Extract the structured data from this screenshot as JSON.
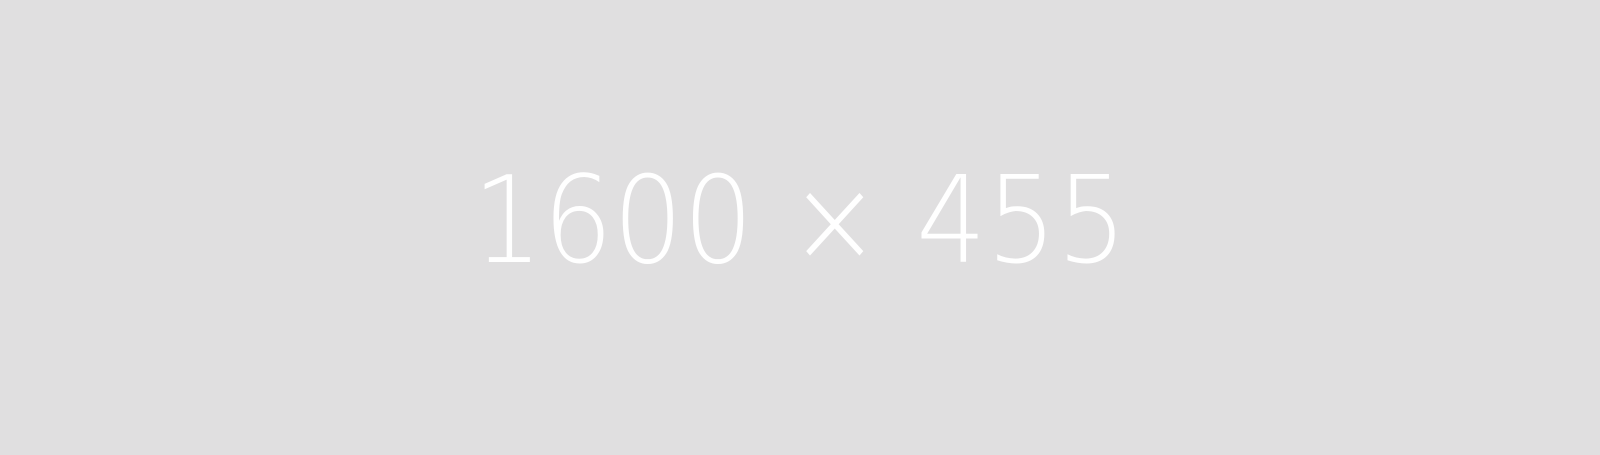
{
  "placeholder": {
    "label": "1600 × 455",
    "background_color": "#e0dfe0",
    "text_color": "#ffffff"
  }
}
